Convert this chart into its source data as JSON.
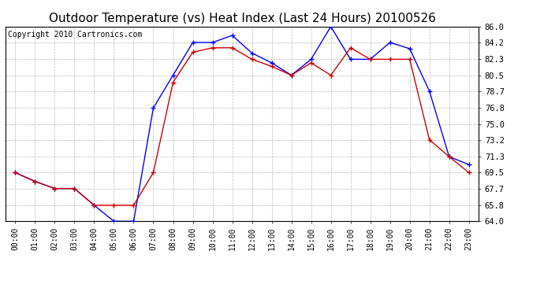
{
  "title": "Outdoor Temperature (vs) Heat Index (Last 24 Hours) 20100526",
  "copyright": "Copyright 2010 Cartronics.com",
  "x_labels": [
    "00:00",
    "01:00",
    "02:00",
    "03:00",
    "04:00",
    "05:00",
    "06:00",
    "07:00",
    "08:00",
    "09:00",
    "10:00",
    "11:00",
    "12:00",
    "13:00",
    "14:00",
    "15:00",
    "16:00",
    "17:00",
    "18:00",
    "19:00",
    "20:00",
    "21:00",
    "22:00",
    "23:00"
  ],
  "blue_data": [
    69.5,
    68.5,
    67.7,
    67.7,
    65.8,
    64.0,
    64.0,
    76.8,
    80.5,
    84.2,
    84.2,
    85.0,
    83.0,
    81.9,
    80.5,
    82.3,
    86.0,
    82.3,
    82.3,
    84.2,
    83.5,
    78.7,
    71.3,
    70.4
  ],
  "red_data": [
    69.5,
    68.5,
    67.7,
    67.7,
    65.8,
    65.8,
    65.8,
    69.5,
    79.7,
    83.1,
    83.6,
    83.6,
    82.3,
    81.5,
    80.5,
    81.9,
    80.5,
    83.6,
    82.3,
    82.3,
    82.3,
    73.2,
    71.3,
    69.5
  ],
  "ylim": [
    64.0,
    86.0
  ],
  "yticks": [
    64.0,
    65.8,
    67.7,
    69.5,
    71.3,
    73.2,
    75.0,
    76.8,
    78.7,
    80.5,
    82.3,
    84.2,
    86.0
  ],
  "blue_color": "#0000ff",
  "red_color": "#cc0000",
  "bg_color": "#ffffff",
  "grid_color": "#aaaaaa",
  "title_fontsize": 11,
  "copyright_fontsize": 7,
  "tick_fontsize": 7,
  "ytick_fontsize": 7.5
}
